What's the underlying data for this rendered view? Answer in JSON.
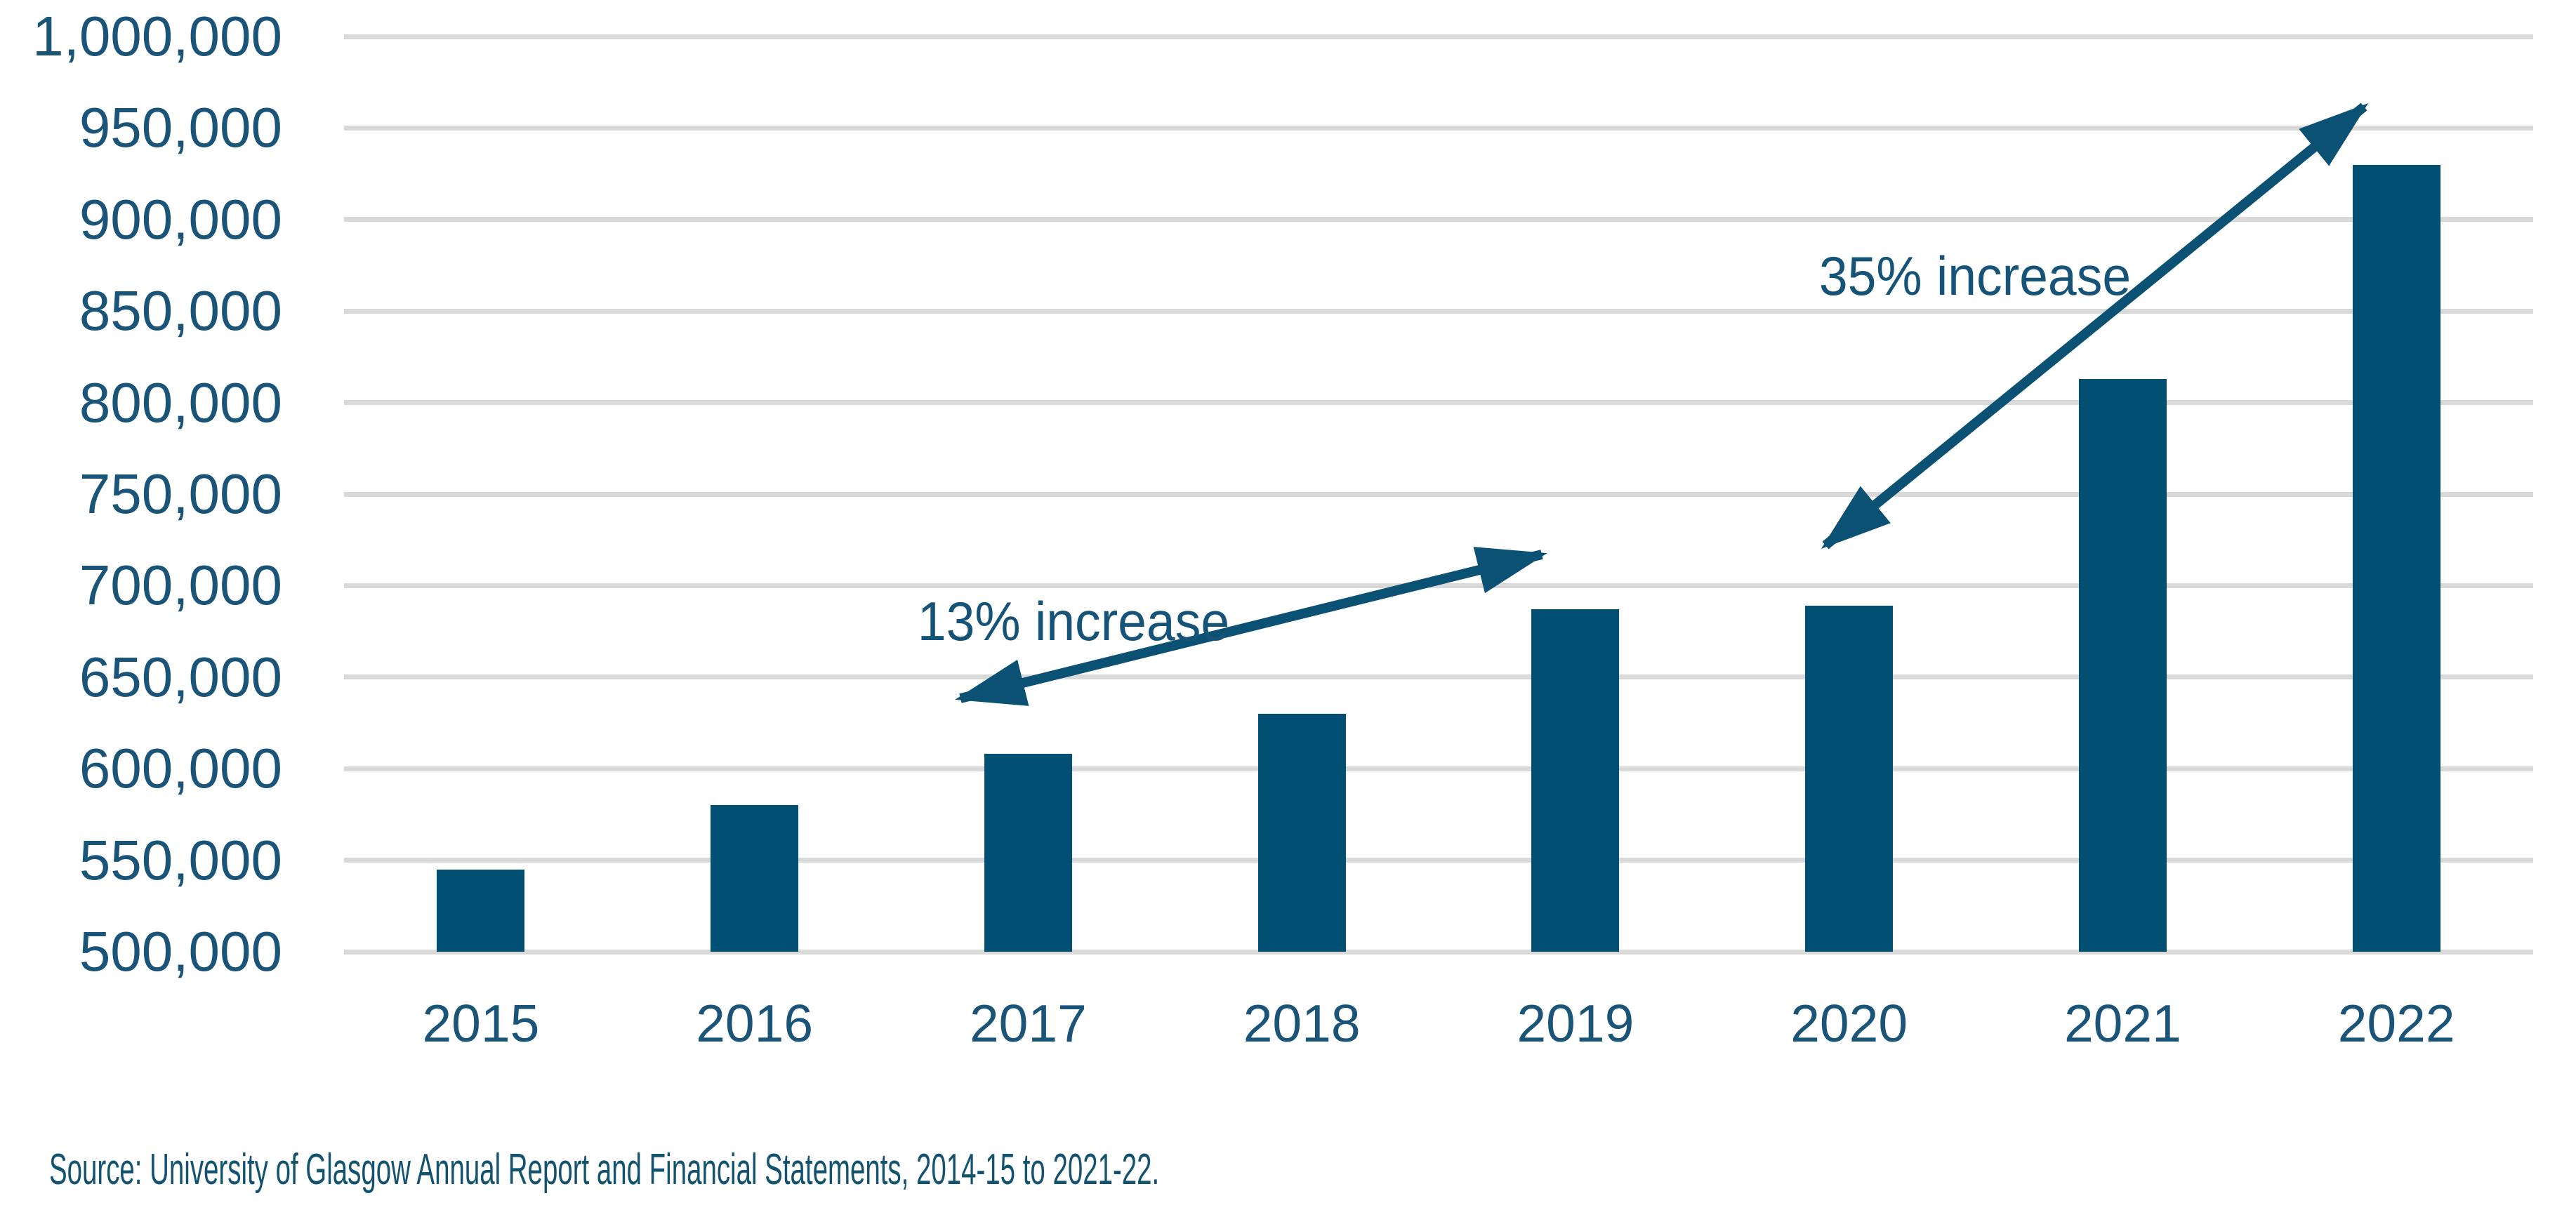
{
  "colors": {
    "bar": "#015073",
    "axis_text": "#1A5478",
    "annotation_text": "#155378",
    "arrow": "#0B5174",
    "gridline": "#D9D9D9",
    "source_text": "#14536F",
    "background": "#FFFFFF"
  },
  "chart_data": {
    "type": "bar",
    "title": "",
    "xlabel": "",
    "ylabel": "",
    "categories": [
      "2015",
      "2016",
      "2017",
      "2018",
      "2019",
      "2020",
      "2021",
      "2022"
    ],
    "values": [
      545000,
      580000,
      608000,
      630000,
      687000,
      689000,
      813000,
      930000
    ],
    "ylim": [
      500000,
      1000000
    ],
    "y_tick_step": 50000,
    "y_tick_labels": [
      "500,000",
      "550,000",
      "600,000",
      "650,000",
      "700,000",
      "750,000",
      "800,000",
      "850,000",
      "900,000",
      "950,000",
      "1,000,000"
    ],
    "grid": true,
    "legend": "none",
    "annotations": [
      {
        "text": "13% increase",
        "from_category": "2017",
        "to_category": "2019"
      },
      {
        "text": "35% increase",
        "from_category": "2020",
        "to_category": "2022"
      }
    ],
    "source_note": "Source: University of Glasgow Annual Report and Financial Statements, 2014-15 to 2021-22."
  }
}
